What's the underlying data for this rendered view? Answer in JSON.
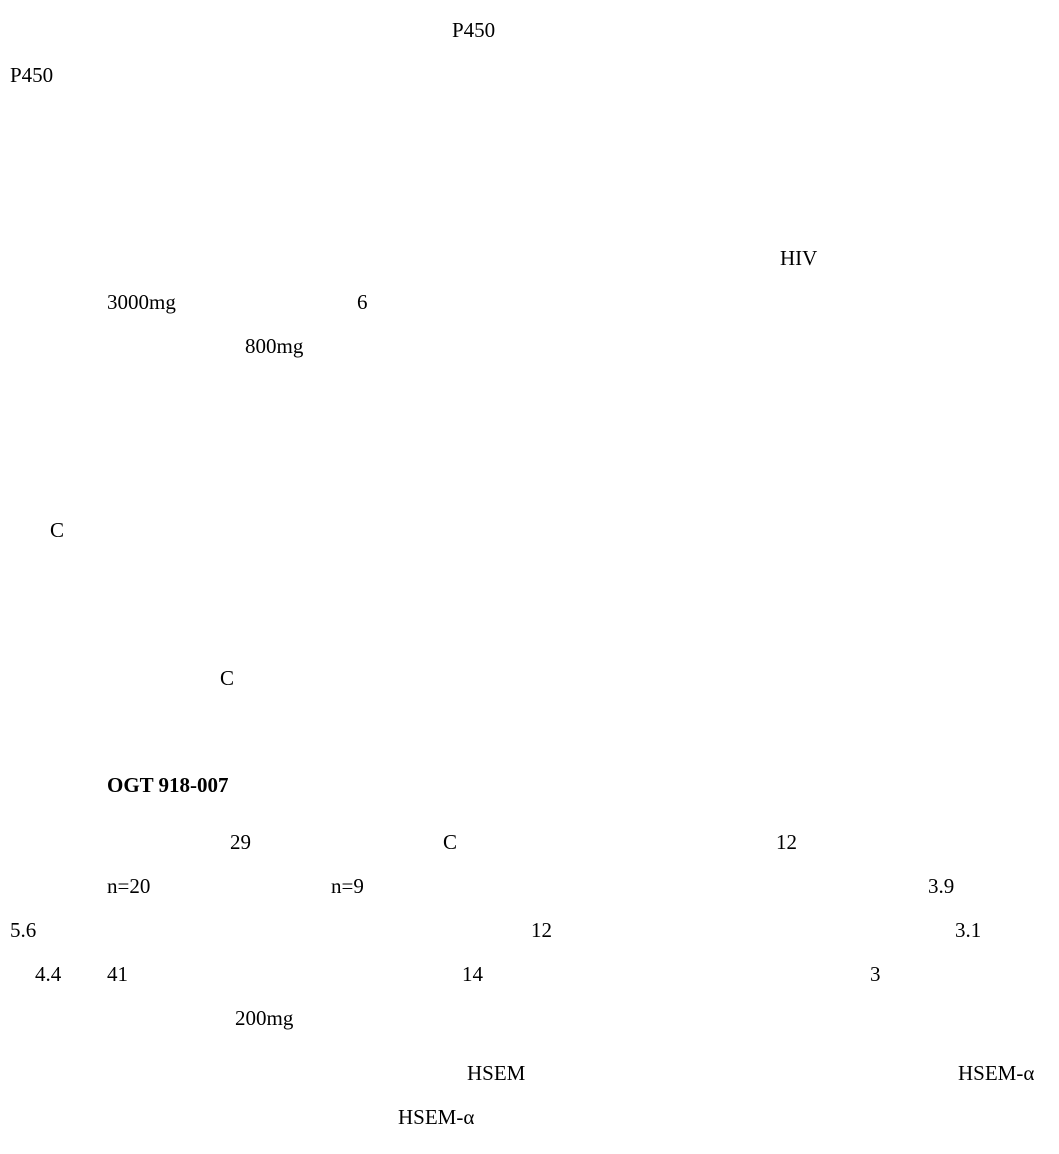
{
  "fragments": {
    "f01": "P450",
    "f02": "P450",
    "f03": "HIV",
    "f04": "3000mg",
    "f05": "6",
    "f06": "800mg",
    "f07": "C",
    "f08": "C",
    "f09": "OGT 918-007",
    "f10": "29",
    "f11": "C",
    "f12": "12",
    "f13": "n=20",
    "f14": "n=9",
    "f15": "3.9",
    "f16": "5.6",
    "f17": "12",
    "f18": "3.1",
    "f19": "4.4",
    "f20": "41",
    "f21": "14",
    "f22": "3",
    "f23": "200mg",
    "f24": "HSEM",
    "f25": "HSEM-α",
    "f26": "HSEM-α"
  }
}
